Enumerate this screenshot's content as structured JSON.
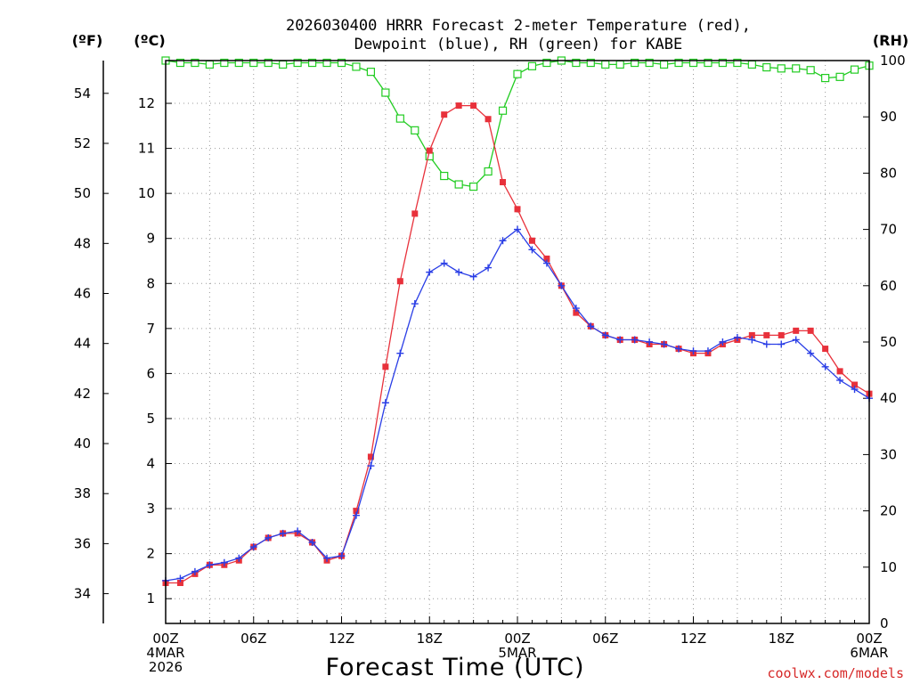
{
  "chart_data": {
    "type": "line",
    "title_line1": "2026030400 HRRR Forecast 2-meter Temperature (red),",
    "title_line2": "Dewpoint (blue), RH (green) for KABE",
    "units": {
      "fahrenheit": "(ºF)",
      "celsius": "(ºC)",
      "rh": "(RH)"
    },
    "xlabel": "Forecast Time (UTC)",
    "credit": "coolwx.com/models",
    "x_hours_range": [
      0,
      48
    ],
    "x_ticks": [
      {
        "hour": 0,
        "lines": [
          "00Z",
          "4MAR",
          "2026"
        ]
      },
      {
        "hour": 6,
        "lines": [
          "06Z"
        ]
      },
      {
        "hour": 12,
        "lines": [
          "12Z"
        ]
      },
      {
        "hour": 18,
        "lines": [
          "18Z"
        ]
      },
      {
        "hour": 24,
        "lines": [
          "00Z",
          "5MAR"
        ]
      },
      {
        "hour": 30,
        "lines": [
          "06Z"
        ]
      },
      {
        "hour": 36,
        "lines": [
          "12Z"
        ]
      },
      {
        "hour": 42,
        "lines": [
          "18Z"
        ]
      },
      {
        "hour": 48,
        "lines": [
          "00Z",
          "6MAR"
        ]
      }
    ],
    "celsius_axis": {
      "range": [
        0.45,
        12.95
      ],
      "ticks": [
        "1",
        "2",
        "3",
        "4",
        "5",
        "6",
        "7",
        "8",
        "9",
        "10",
        "11",
        "12"
      ]
    },
    "fahrenheit_axis": {
      "ticks": [
        "34",
        "36",
        "38",
        "40",
        "42",
        "44",
        "46",
        "48",
        "50",
        "52",
        "54"
      ]
    },
    "rh_axis": {
      "range": [
        0,
        100
      ],
      "ticks": [
        "0",
        "10",
        "20",
        "30",
        "40",
        "50",
        "60",
        "70",
        "80",
        "90",
        "100"
      ]
    },
    "grid": true,
    "colors": {
      "temperature": "#e8313b",
      "dewpoint": "#2a3ee6",
      "rh": "#22cc22"
    },
    "series": [
      {
        "key": "temperature",
        "unit": "C",
        "marker": "filled-square",
        "values": [
          1.35,
          1.35,
          1.55,
          1.75,
          1.75,
          1.85,
          2.15,
          2.35,
          2.45,
          2.45,
          2.25,
          1.85,
          1.95,
          2.95,
          4.15,
          6.15,
          8.05,
          9.55,
          10.95,
          11.75,
          11.95,
          11.95,
          11.65,
          10.25,
          9.65,
          8.95,
          8.55,
          7.95,
          7.35,
          7.05,
          6.85,
          6.75,
          6.75,
          6.65,
          6.65,
          6.55,
          6.45,
          6.45,
          6.65,
          6.75,
          6.85,
          6.85,
          6.85,
          6.95,
          6.95,
          6.55,
          6.05,
          5.75,
          5.55
        ]
      },
      {
        "key": "dewpoint",
        "unit": "C",
        "marker": "plus",
        "values": [
          1.4,
          1.45,
          1.6,
          1.75,
          1.8,
          1.9,
          2.15,
          2.35,
          2.45,
          2.5,
          2.25,
          1.9,
          1.95,
          2.85,
          3.95,
          5.35,
          6.45,
          7.55,
          8.25,
          8.45,
          8.25,
          8.15,
          8.35,
          8.95,
          9.2,
          8.75,
          8.45,
          7.95,
          7.45,
          7.05,
          6.85,
          6.75,
          6.75,
          6.7,
          6.65,
          6.55,
          6.5,
          6.5,
          6.7,
          6.8,
          6.75,
          6.65,
          6.65,
          6.75,
          6.45,
          6.15,
          5.85,
          5.65,
          5.45
        ]
      },
      {
        "key": "rh",
        "unit": "%",
        "marker": "open-square",
        "values": [
          100,
          99.6,
          99.6,
          99.3,
          99.6,
          99.6,
          99.6,
          99.6,
          99.3,
          99.6,
          99.6,
          99.6,
          99.6,
          98.9,
          98,
          94.3,
          89.7,
          87.6,
          83,
          79.5,
          78,
          77.6,
          80.3,
          91.1,
          97.6,
          99,
          99.6,
          100,
          99.6,
          99.6,
          99.3,
          99.3,
          99.6,
          99.6,
          99.3,
          99.6,
          99.6,
          99.6,
          99.6,
          99.6,
          99.3,
          98.8,
          98.6,
          98.6,
          98.3,
          96.9,
          97.1,
          98.4,
          99.1
        ]
      }
    ]
  }
}
